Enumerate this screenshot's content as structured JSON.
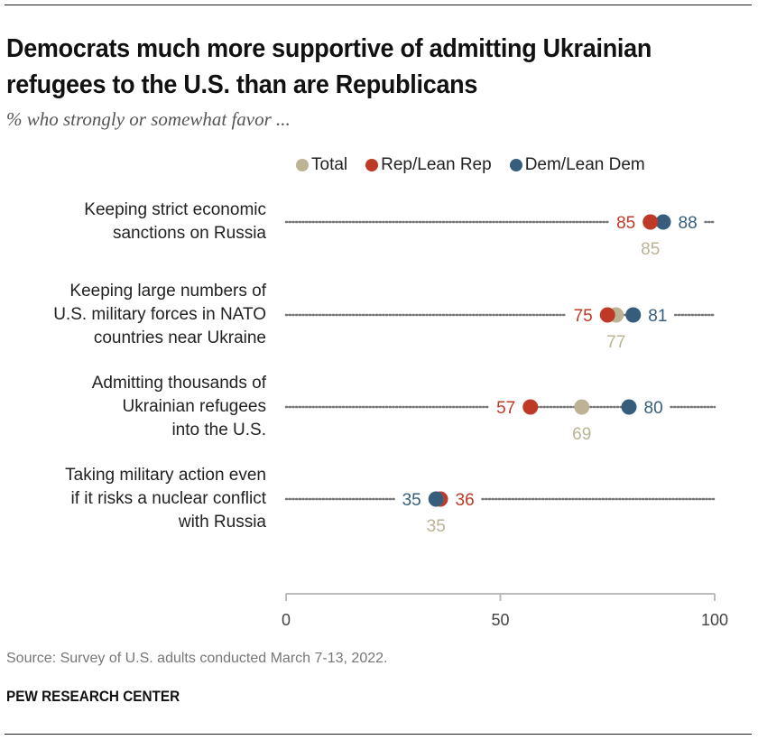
{
  "title": "Democrats much more supportive of admitting Ukrainian refugees to the U.S. than are Republicans",
  "subtitle": "% who strongly or somewhat favor ...",
  "legend": [
    {
      "name": "Total",
      "color": "#bcb395"
    },
    {
      "name": "Rep/Lean Rep",
      "color": "#bf3927"
    },
    {
      "name": "Dem/Lean Dem",
      "color": "#365e7c"
    }
  ],
  "source": "Source: Survey of U.S. adults conducted March 7-13, 2022.",
  "brand": "PEW RESEARCH CENTER",
  "chart_data": {
    "type": "scatter",
    "subtype": "dot-plot",
    "title": "Democrats much more supportive of admitting Ukrainian refugees to the U.S. than are Republicans",
    "subtitle": "% who strongly or somewhat favor ...",
    "categories": [
      "Keeping strict economic\nsanctions on Russia",
      "Keeping large numbers of\nU.S. military forces in NATO\ncountries near Ukraine",
      "Admitting thousands of\nUkrainian refugees\ninto the U.S.",
      "Taking military action even\nif it risks a nuclear conflict\nwith Russia"
    ],
    "series": [
      {
        "name": "Total",
        "color": "#bcb395",
        "values": [
          85,
          77,
          69,
          35
        ]
      },
      {
        "name": "Rep/Lean Rep",
        "color": "#bf3927",
        "values": [
          85,
          75,
          57,
          36
        ]
      },
      {
        "name": "Dem/Lean Dem",
        "color": "#365e7c",
        "values": [
          88,
          81,
          80,
          35
        ]
      }
    ],
    "xlim": [
      0,
      100
    ],
    "xticks": [
      0,
      50,
      100
    ],
    "xlabel": "",
    "ylabel": "",
    "grid": false,
    "legend_position": "top-right"
  }
}
